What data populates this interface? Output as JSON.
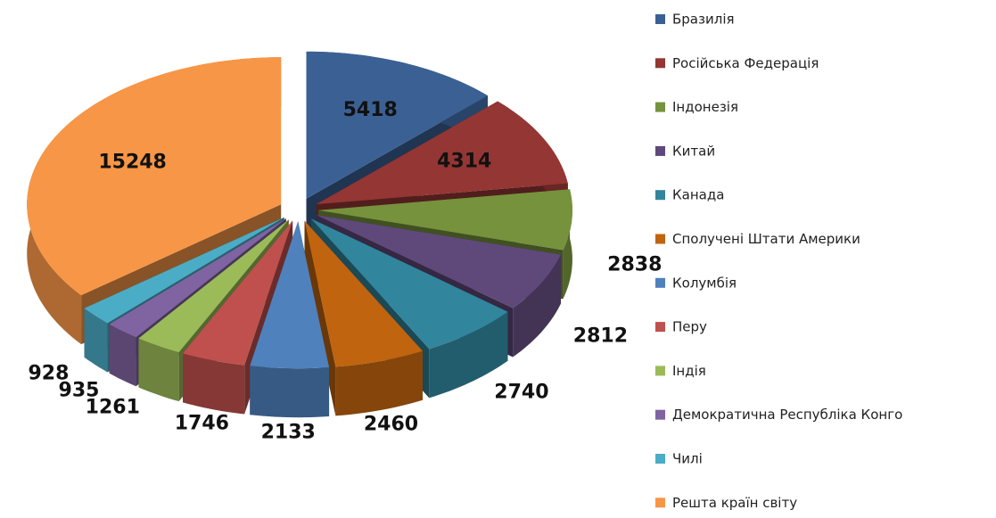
{
  "chart_data": {
    "type": "pie",
    "categories": [
      "Бразилія",
      "Російська Федерація",
      "Індонезія",
      "Китай",
      "Канада",
      "Сполучені Штати Америки",
      "Колумбія",
      "Перу",
      "Індія",
      "Демократична Республіка Конго",
      "Чилі",
      "Решта країн світу"
    ],
    "values": [
      5418,
      4314,
      2838,
      2812,
      2740,
      2460,
      2133,
      1746,
      1261,
      935,
      928,
      15248
    ],
    "colors": [
      "#3b6194",
      "#943634",
      "#76923c",
      "#5f497a",
      "#31859c",
      "#c0640f",
      "#4f81bd",
      "#c0504d",
      "#9bbb59",
      "#8064a2",
      "#4bacc6",
      "#f79646"
    ],
    "legend": "right"
  }
}
